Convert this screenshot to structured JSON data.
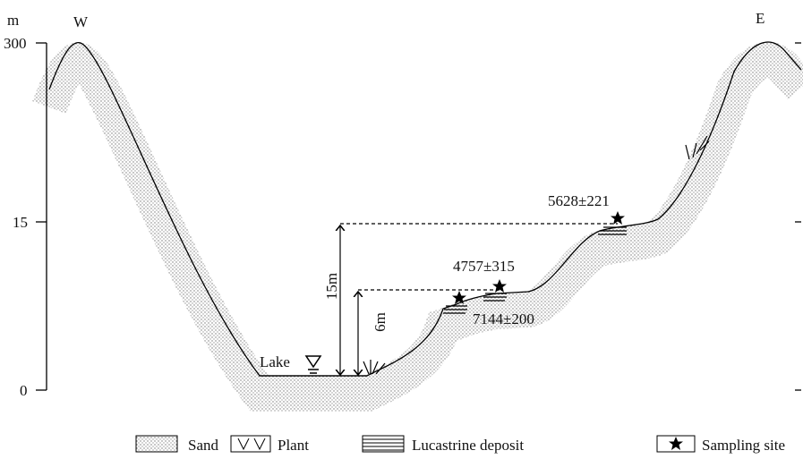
{
  "axis": {
    "unit": "m",
    "ticks": [
      "300",
      "15",
      "0"
    ]
  },
  "directions": {
    "west": "W",
    "east": "E"
  },
  "labels": {
    "lake": "Lake",
    "height_15": "15m",
    "height_6": "6m"
  },
  "samples": [
    {
      "age": "5628±221"
    },
    {
      "age": "4757±315"
    },
    {
      "age": "7144±200"
    }
  ],
  "legend": [
    "Sand",
    "Plant",
    "Lucastrine deposit",
    "Sampling site"
  ]
}
